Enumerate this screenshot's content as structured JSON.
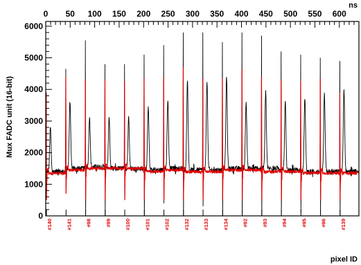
{
  "chart_data": {
    "type": "line",
    "title": "",
    "ylabel": "Mux FADC unit (16-bit)",
    "xlabel_bottom": "pixel ID",
    "xlabel_top": "ns",
    "ylim": [
      0,
      6150
    ],
    "xlim_top": [
      0,
      640
    ],
    "y_ticks": [
      0,
      1000,
      2000,
      3000,
      4000,
      5000,
      6000
    ],
    "top_ticks": [
      0,
      50,
      100,
      150,
      200,
      250,
      300,
      350,
      400,
      450,
      500,
      550,
      600
    ],
    "pixel_ids": [
      "#140",
      "#141",
      "#98",
      "#99",
      "#100",
      "#101",
      "#102",
      "#132",
      "#133",
      "#134",
      "#92",
      "#93",
      "#94",
      "#95",
      "#96",
      "#139"
    ],
    "segment_length_ns": 40,
    "x_offset_ns": 0,
    "series": [
      {
        "color": "#000000",
        "description_values": {
          "baseline": [
            1400,
            1500,
            1550,
            1500,
            1500,
            1450,
            1500,
            1450,
            1450,
            1500,
            1500,
            1500,
            1450,
            1400,
            1400,
            1400
          ],
          "narrow_spike_peak": [
            3900,
            4650,
            5550,
            4800,
            4800,
            5100,
            5400,
            5800,
            5800,
            5500,
            5800,
            5700,
            5200,
            5100,
            5000,
            4900
          ],
          "narrow_spike_dip": [
            1050,
            850,
            0,
            0,
            500,
            0,
            400,
            0,
            300,
            0,
            0,
            0,
            0,
            100,
            50,
            0
          ],
          "broad_pulse_peak": [
            2800,
            3650,
            3150,
            3150,
            3150,
            3500,
            3650,
            4300,
            4300,
            4400,
            3650,
            3950,
            3600,
            3750,
            3850,
            4000
          ]
        }
      },
      {
        "color": "#e00000",
        "description_values": {
          "baseline": [
            1350,
            1450,
            1500,
            1500,
            1500,
            1400,
            1450,
            1400,
            1400,
            1450,
            1450,
            1400,
            1400,
            1350,
            1350,
            1350
          ],
          "spike_peak": [
            3900,
            4400,
            4300,
            4300,
            4250,
            4350,
            4400,
            4700,
            4350,
            4350,
            4650,
            4400,
            4300,
            4250,
            4350,
            3900
          ],
          "spike_dip": [
            500,
            700,
            500,
            500,
            500,
            500,
            500,
            500,
            500,
            500,
            500,
            500,
            500,
            500,
            500,
            500
          ]
        }
      }
    ],
    "grid": false,
    "legend": "none"
  }
}
